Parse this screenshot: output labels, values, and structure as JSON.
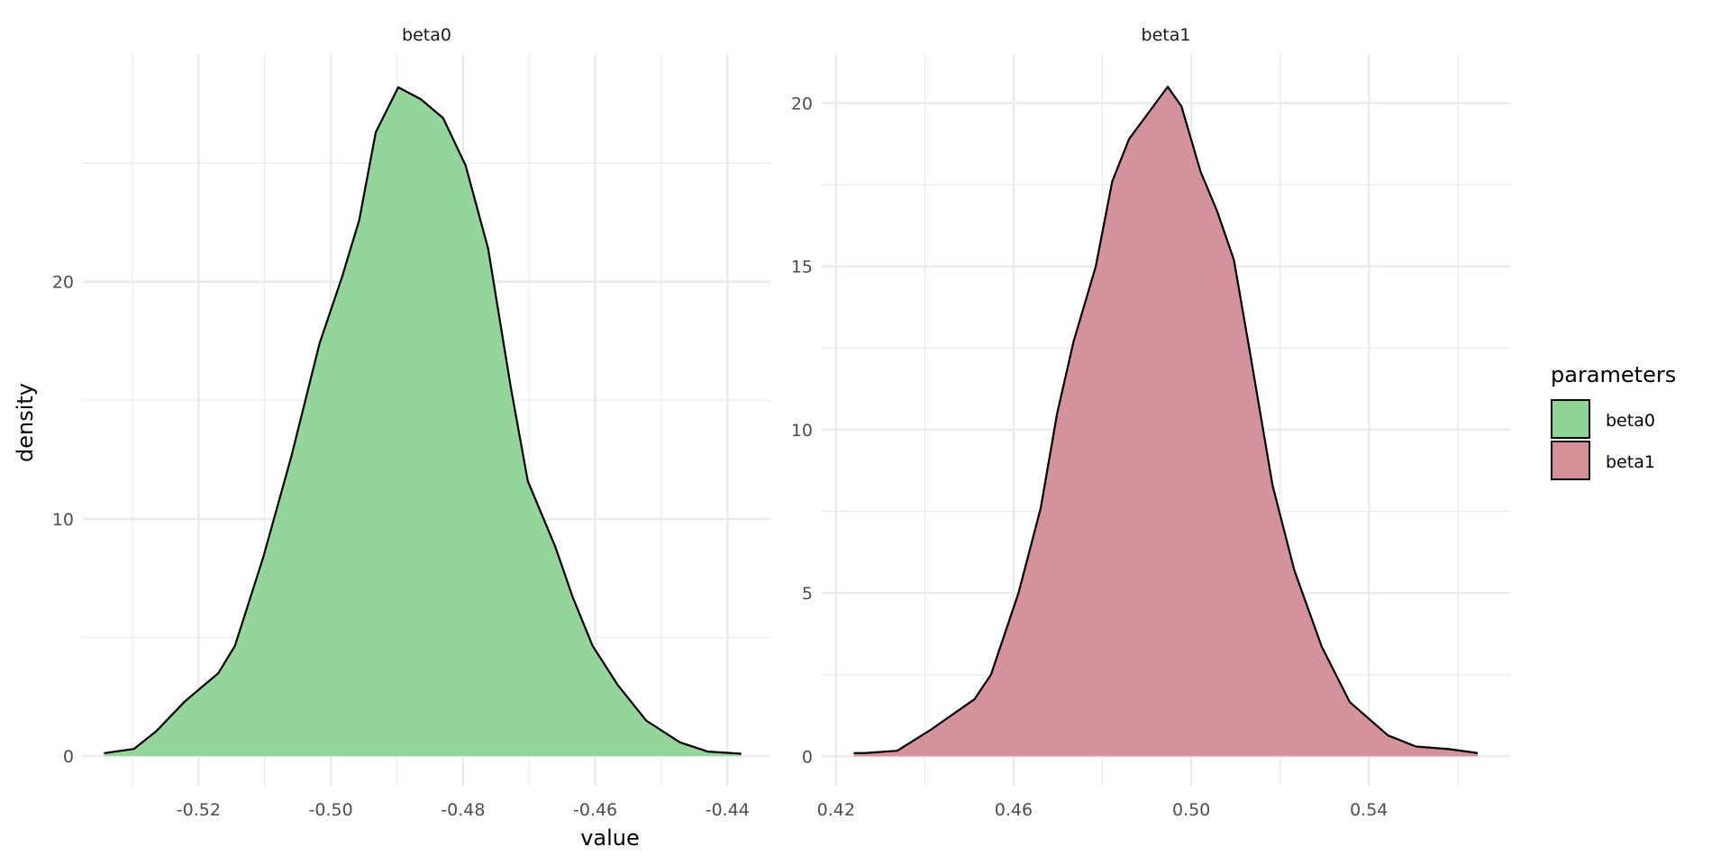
{
  "chart_data": [
    {
      "type": "area",
      "panel": "beta0",
      "title": "beta0",
      "xlabel": "value",
      "ylabel": "density",
      "xlim": [
        -0.5375,
        -0.4335
      ],
      "ylim": [
        -1.25,
        29.6
      ],
      "xticks": [
        -0.52,
        -0.5,
        -0.48,
        -0.46,
        -0.44
      ],
      "xtick_labels": [
        "-0.52",
        "-0.50",
        "-0.48",
        "-0.46",
        "-0.44"
      ],
      "xminor": [
        -0.53,
        -0.51,
        -0.49,
        -0.47,
        -0.45
      ],
      "yticks": [
        0,
        10,
        20
      ],
      "ytick_labels": [
        "0",
        "10",
        "20"
      ],
      "yminor": [
        5,
        15,
        25
      ],
      "fill": "#90d497",
      "x": [
        -0.5343,
        -0.5298,
        -0.5264,
        -0.5221,
        -0.517,
        -0.5145,
        -0.5102,
        -0.506,
        -0.5017,
        -0.4983,
        -0.4957,
        -0.4932,
        -0.4898,
        -0.4864,
        -0.483,
        -0.4796,
        -0.4762,
        -0.4728,
        -0.4702,
        -0.466,
        -0.4634,
        -0.4604,
        -0.4566,
        -0.4523,
        -0.4472,
        -0.443,
        -0.4379
      ],
      "y": [
        0.12,
        0.3,
        1.05,
        2.3,
        3.5,
        4.65,
        8.4,
        12.6,
        17.4,
        20.2,
        22.6,
        26.3,
        28.2,
        27.7,
        26.9,
        24.9,
        21.4,
        15.6,
        11.6,
        8.8,
        6.7,
        4.65,
        3.0,
        1.5,
        0.58,
        0.19,
        0.1
      ]
    },
    {
      "type": "area",
      "panel": "beta1",
      "title": "beta1",
      "xlabel": "value",
      "ylabel": "density",
      "xlim": [
        0.4168,
        0.5718
      ],
      "ylim": [
        -0.9,
        21.5
      ],
      "xticks": [
        0.42,
        0.46,
        0.5,
        0.54
      ],
      "xtick_labels": [
        "0.42",
        "0.46",
        "0.50",
        "0.54"
      ],
      "xminor": [
        0.44,
        0.48,
        0.52,
        0.56
      ],
      "yticks": [
        0,
        5,
        10,
        15,
        20
      ],
      "ytick_labels": [
        "0",
        "5",
        "10",
        "15",
        "20"
      ],
      "yminor": [
        2.5,
        7.5,
        12.5,
        17.5
      ],
      "fill": "#d39099",
      "x": [
        0.424,
        0.4265,
        0.4338,
        0.4412,
        0.4512,
        0.4549,
        0.4611,
        0.4661,
        0.4698,
        0.4735,
        0.4785,
        0.4822,
        0.486,
        0.4909,
        0.4947,
        0.4978,
        0.5021,
        0.5058,
        0.5096,
        0.5133,
        0.5183,
        0.5232,
        0.5294,
        0.5357,
        0.5443,
        0.5506,
        0.558,
        0.5645
      ],
      "y": [
        0.1,
        0.1,
        0.17,
        0.8,
        1.75,
        2.5,
        5.0,
        7.6,
        10.5,
        12.7,
        15.0,
        17.6,
        18.9,
        19.8,
        20.5,
        19.9,
        17.9,
        16.7,
        15.2,
        12.3,
        8.3,
        5.7,
        3.35,
        1.66,
        0.64,
        0.3,
        0.22,
        0.1
      ]
    }
  ],
  "axis": {
    "xlabel": "value",
    "ylabel": "density"
  },
  "legend": {
    "title": "parameters",
    "position": "right",
    "items": [
      {
        "label": "beta0",
        "color": "#90d497"
      },
      {
        "label": "beta1",
        "color": "#d39099"
      }
    ]
  }
}
